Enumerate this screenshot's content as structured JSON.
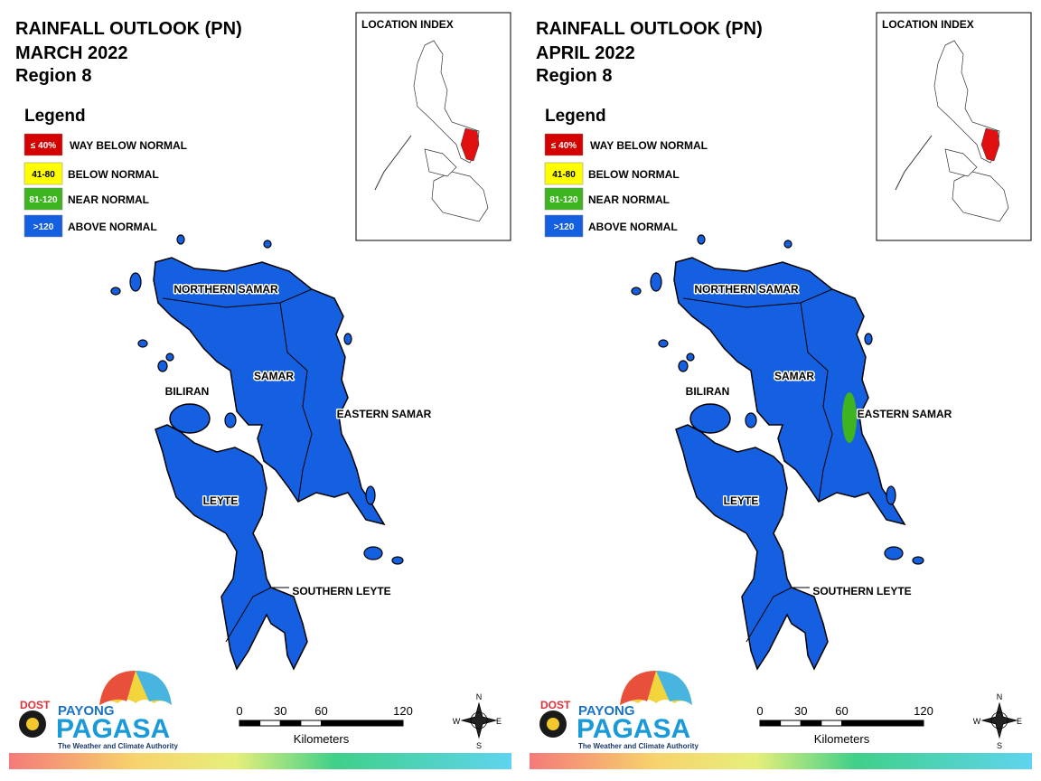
{
  "panels": [
    {
      "title": "RAINFALL OUTLOOK (PN)",
      "month": "MARCH 2022",
      "region": "Region 8",
      "legend": {
        "title": "Legend",
        "items": [
          {
            "code": "≤ 40%",
            "label": "WAY BELOW NORMAL",
            "color": "#d40000"
          },
          {
            "code": "41-80",
            "label": "BELOW NORMAL",
            "color": "#ffff00"
          },
          {
            "code": "81-120",
            "label": "NEAR NORMAL",
            "color": "#3cb521"
          },
          {
            "code": ">120",
            "label": "ABOVE NORMAL",
            "color": "#1560e0"
          }
        ]
      },
      "inset_title": "LOCATION INDEX",
      "provinces": [
        "NORTHERN SAMAR",
        "SAMAR",
        "BILIRAN",
        "EASTERN SAMAR",
        "LEYTE",
        "SOUTHERN LEYTE"
      ],
      "scale": {
        "ticks": [
          0,
          30,
          60,
          120
        ],
        "unit": "Kilometers"
      },
      "compass": [
        "N",
        "E",
        "S",
        "W"
      ],
      "logo": {
        "agency": "DOST",
        "brand": "PAYONG",
        "name": "PAGASA",
        "tagline": "The Weather and Climate Authority"
      }
    },
    {
      "title": "RAINFALL OUTLOOK (PN)",
      "month": "APRIL 2022",
      "region": "Region 8",
      "legend": {
        "title": "Legend",
        "items": [
          {
            "code": "≤ 40%",
            "label": "WAY BELOW NORMAL",
            "color": "#d40000"
          },
          {
            "code": "41-80",
            "label": "BELOW NORMAL",
            "color": "#ffff00"
          },
          {
            "code": "81-120",
            "label": "NEAR NORMAL",
            "color": "#3cb521"
          },
          {
            "code": ">120",
            "label": "ABOVE NORMAL",
            "color": "#1560e0"
          }
        ]
      },
      "inset_title": "LOCATION INDEX",
      "provinces": [
        "NORTHERN SAMAR",
        "SAMAR",
        "BILIRAN",
        "EASTERN SAMAR",
        "LEYTE",
        "SOUTHERN LEYTE"
      ],
      "scale": {
        "ticks": [
          0,
          30,
          60,
          120
        ],
        "unit": "Kilometers"
      },
      "compass": [
        "N",
        "E",
        "S",
        "W"
      ],
      "logo": {
        "agency": "DOST",
        "brand": "PAYONG",
        "name": "PAGASA",
        "tagline": "The Weather and Climate Authority"
      }
    }
  ]
}
